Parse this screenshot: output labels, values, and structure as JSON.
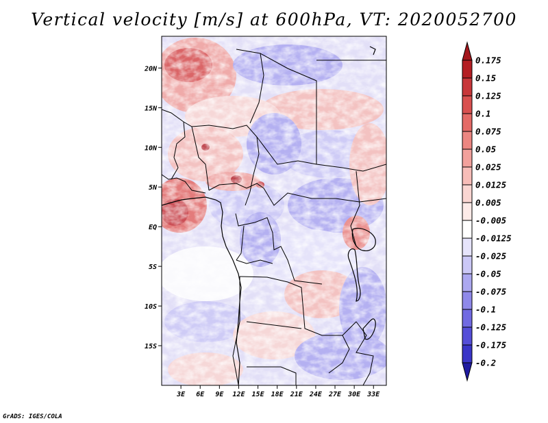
{
  "title": "Vertical velocity [m/s] at 600hPa, VT: 2020052700",
  "credit": "GrADS: IGES/COLA",
  "map": {
    "variable": "Vertical velocity",
    "units": "m/s",
    "level": "600hPa",
    "valid_time": "2020052700",
    "lon_range": [
      0,
      35
    ],
    "lat_range": [
      -20,
      24
    ],
    "x_ticks": [
      {
        "value": 3,
        "label": "3E"
      },
      {
        "value": 6,
        "label": "6E"
      },
      {
        "value": 9,
        "label": "9E"
      },
      {
        "value": 12,
        "label": "12E"
      },
      {
        "value": 15,
        "label": "15E"
      },
      {
        "value": 18,
        "label": "18E"
      },
      {
        "value": 21,
        "label": "21E"
      },
      {
        "value": 24,
        "label": "24E"
      },
      {
        "value": 27,
        "label": "27E"
      },
      {
        "value": 30,
        "label": "30E"
      },
      {
        "value": 33,
        "label": "33E"
      }
    ],
    "y_ticks": [
      {
        "value": 20,
        "label": "20N"
      },
      {
        "value": 15,
        "label": "15N"
      },
      {
        "value": 10,
        "label": "10N"
      },
      {
        "value": 5,
        "label": "5N"
      },
      {
        "value": 0,
        "label": "EQ"
      },
      {
        "value": -5,
        "label": "5S"
      },
      {
        "value": -10,
        "label": "10S"
      },
      {
        "value": -15,
        "label": "15S"
      }
    ]
  },
  "colorbar": {
    "levels": [
      {
        "label": "0.175",
        "color": "#b41e23"
      },
      {
        "label": "0.15",
        "color": "#c8373a"
      },
      {
        "label": "0.125",
        "color": "#d9504f"
      },
      {
        "label": "0.1",
        "color": "#e46a66"
      },
      {
        "label": "0.075",
        "color": "#ec8681"
      },
      {
        "label": "0.05",
        "color": "#f2a19c"
      },
      {
        "label": "0.025",
        "color": "#f7bdb8"
      },
      {
        "label": "0.0125",
        "color": "#fad6d2"
      },
      {
        "label": "0.005",
        "color": "#fdebe8"
      },
      {
        "label": "-0.005",
        "color": "#ffffff"
      },
      {
        "label": "-0.0125",
        "color": "#e6e4fb"
      },
      {
        "label": "-0.025",
        "color": "#cbc8f6"
      },
      {
        "label": "-0.05",
        "color": "#aca8f0"
      },
      {
        "label": "-0.075",
        "color": "#8f89ea"
      },
      {
        "label": "-0.1",
        "color": "#716ae2"
      },
      {
        "label": "-0.125",
        "color": "#554ed8"
      },
      {
        "label": "-0.175",
        "color": "#3a35c8"
      },
      {
        "label": "-0.2",
        "color": "#2a25b0"
      }
    ],
    "top_color": "#a3161c",
    "bottom_color": "#1f1aa0"
  }
}
